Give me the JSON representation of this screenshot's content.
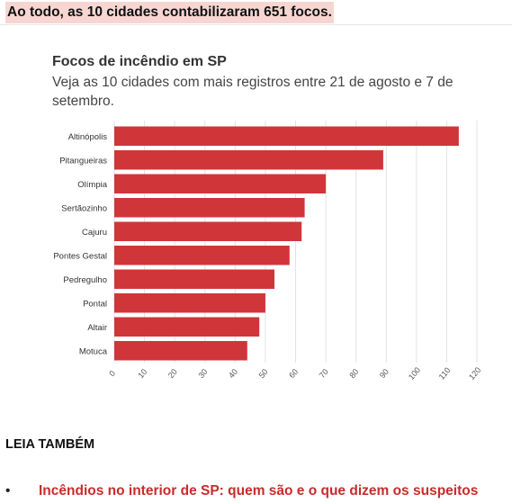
{
  "headline": "Ao todo, as 10 cidades contabilizaram 651 focos.",
  "chart_data": {
    "type": "bar",
    "orientation": "horizontal",
    "title": "Focos de incêndio em SP",
    "subtitle": "Veja as 10 cidades com mais registros entre 21 de agosto e 7 de setembro.",
    "categories": [
      "Altinópolis",
      "Pitangueiras",
      "Olímpia",
      "Sertãozinho",
      "Cajuru",
      "Pontes Gestal",
      "Pedregulho",
      "Pontal",
      "Altair",
      "Motuca"
    ],
    "values": [
      114,
      89,
      70,
      63,
      62,
      58,
      53,
      50,
      48,
      44
    ],
    "xlim": [
      0,
      120
    ],
    "xticks": [
      0,
      10,
      20,
      30,
      40,
      50,
      60,
      70,
      80,
      90,
      100,
      110,
      120
    ],
    "grid": true,
    "bar_color": "#d0353a"
  },
  "related": {
    "section_title": "LEIA TAMBÉM",
    "bullet": "•",
    "items": [
      {
        "label": "Incêndios no interior de SP: quem são e o que dizem os suspeitos"
      }
    ]
  }
}
